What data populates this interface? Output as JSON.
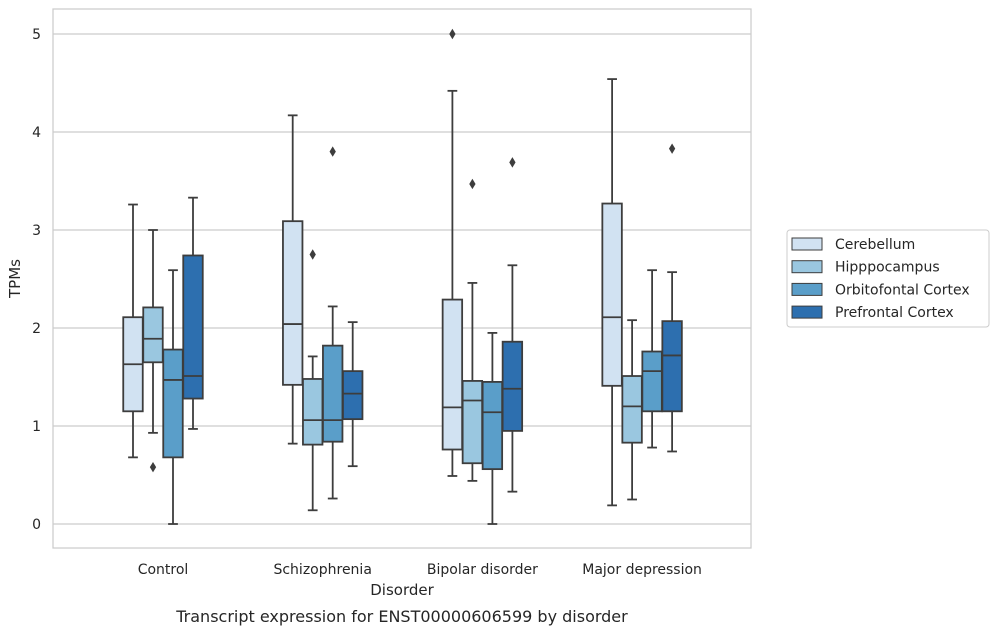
{
  "chart_data": {
    "type": "boxplot",
    "caption": "Transcript expression for ENST00000606599 by disorder",
    "xlabel": "Disorder",
    "ylabel": "TPMs",
    "ylim": [
      -0.24,
      5.25
    ],
    "yticks": [
      0,
      1,
      2,
      3,
      4,
      5
    ],
    "grid": "horizontal",
    "legend_position": "right",
    "categories": [
      "Control",
      "Schizophrenia",
      "Bipolar disorder",
      "Major depression"
    ],
    "series": [
      {
        "name": "Cerebellum",
        "color": "#d1e2f2",
        "boxes": [
          {
            "whislo": 0.68,
            "q1": 1.15,
            "med": 1.63,
            "q3": 2.11,
            "whishi": 3.26,
            "fliers": []
          },
          {
            "whislo": 0.82,
            "q1": 1.42,
            "med": 2.04,
            "q3": 3.09,
            "whishi": 4.17,
            "fliers": []
          },
          {
            "whislo": 0.49,
            "q1": 0.76,
            "med": 1.19,
            "q3": 2.29,
            "whishi": 4.42,
            "fliers": [
              5.0
            ]
          },
          {
            "whislo": 0.19,
            "q1": 1.41,
            "med": 2.11,
            "q3": 3.27,
            "whishi": 4.54,
            "fliers": []
          }
        ]
      },
      {
        "name": "Hipppocampus",
        "color": "#9ac7e0",
        "boxes": [
          {
            "whislo": 0.93,
            "q1": 1.65,
            "med": 1.89,
            "q3": 2.21,
            "whishi": 3.0,
            "fliers": [
              0.58
            ]
          },
          {
            "whislo": 0.14,
            "q1": 0.81,
            "med": 1.06,
            "q3": 1.48,
            "whishi": 1.71,
            "fliers": [
              2.75
            ]
          },
          {
            "whislo": 0.44,
            "q1": 0.62,
            "med": 1.26,
            "q3": 1.46,
            "whishi": 2.46,
            "fliers": [
              3.47
            ]
          },
          {
            "whislo": 0.25,
            "q1": 0.83,
            "med": 1.2,
            "q3": 1.51,
            "whishi": 2.08,
            "fliers": []
          }
        ]
      },
      {
        "name": "Orbitofontal Cortex",
        "color": "#5a9ec9",
        "boxes": [
          {
            "whislo": 0.0,
            "q1": 0.68,
            "med": 1.47,
            "q3": 1.78,
            "whishi": 2.59,
            "fliers": []
          },
          {
            "whislo": 0.26,
            "q1": 0.84,
            "med": 1.06,
            "q3": 1.82,
            "whishi": 2.22,
            "fliers": [
              3.8
            ]
          },
          {
            "whislo": 0.0,
            "q1": 0.56,
            "med": 1.14,
            "q3": 1.45,
            "whishi": 1.95,
            "fliers": []
          },
          {
            "whislo": 0.78,
            "q1": 1.15,
            "med": 1.56,
            "q3": 1.76,
            "whishi": 2.59,
            "fliers": []
          }
        ]
      },
      {
        "name": "Prefrontal Cortex",
        "color": "#2d6faf",
        "boxes": [
          {
            "whislo": 0.97,
            "q1": 1.28,
            "med": 1.51,
            "q3": 2.74,
            "whishi": 3.33,
            "fliers": []
          },
          {
            "whislo": 0.59,
            "q1": 1.07,
            "med": 1.33,
            "q3": 1.56,
            "whishi": 2.06,
            "fliers": []
          },
          {
            "whislo": 0.33,
            "q1": 0.95,
            "med": 1.38,
            "q3": 1.86,
            "whishi": 2.64,
            "fliers": [
              3.69
            ]
          },
          {
            "whislo": 0.74,
            "q1": 1.15,
            "med": 1.72,
            "q3": 2.07,
            "whishi": 2.57,
            "fliers": [
              3.83
            ]
          }
        ]
      }
    ]
  }
}
